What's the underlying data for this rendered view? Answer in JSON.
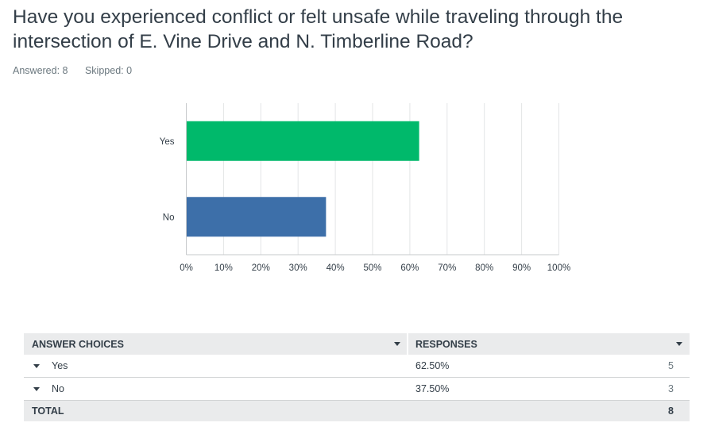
{
  "question": "Have you experienced conflict or felt unsafe while traveling through the intersection of E. Vine Drive and N. Timberline Road?",
  "stats": {
    "answered": "Answered: 8",
    "skipped": "Skipped: 0"
  },
  "chart_data": {
    "type": "bar",
    "orientation": "horizontal",
    "categories": [
      "Yes",
      "No"
    ],
    "values": [
      62.5,
      37.5
    ],
    "colors": [
      "#00b96b",
      "#3d6fa9"
    ],
    "xlim": [
      0,
      100
    ],
    "xticks": [
      "0%",
      "10%",
      "20%",
      "30%",
      "40%",
      "50%",
      "60%",
      "70%",
      "80%",
      "90%",
      "100%"
    ],
    "grid": true,
    "title": "",
    "xlabel": "",
    "ylabel": ""
  },
  "table": {
    "headers": {
      "choices": "ANSWER CHOICES",
      "responses": "RESPONSES"
    },
    "rows": [
      {
        "choice": "Yes",
        "percent": "62.50%",
        "count": "5"
      },
      {
        "choice": "No",
        "percent": "37.50%",
        "count": "3"
      }
    ],
    "total": {
      "label": "TOTAL",
      "count": "8"
    }
  }
}
